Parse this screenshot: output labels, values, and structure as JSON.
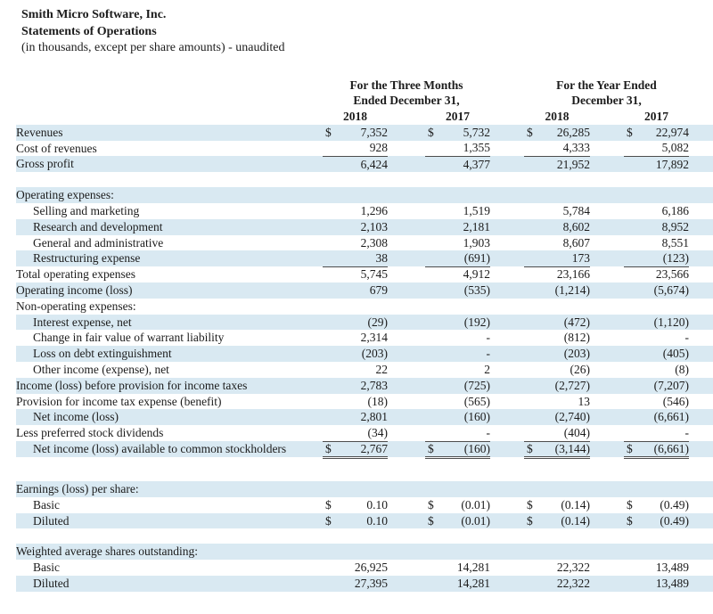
{
  "header": {
    "company": "Smith Micro Software, Inc.",
    "statement_title": "Statements of Operations",
    "subtitle": "(in thousands, except per share amounts) - unaudited"
  },
  "colors": {
    "row_shade": "#d9e9f2",
    "rule": "#4d4d4d",
    "text": "#1c1c1c"
  },
  "table": {
    "currency_symbol": "$",
    "column_groups": [
      {
        "line1": "For the Three Months",
        "line2": "Ended December 31,",
        "years": [
          "2018",
          "2017"
        ]
      },
      {
        "line1": "For the Year Ended",
        "line2": "December 31,",
        "years": [
          "2018",
          "2017"
        ]
      }
    ],
    "rows": [
      {
        "label": "Revenues",
        "indent": 0,
        "shaded": true,
        "dollar": true,
        "values": [
          "7,352",
          "5,732",
          "26,285",
          "22,974"
        ]
      },
      {
        "label": "Cost of revenues",
        "indent": 0,
        "shaded": false,
        "values": [
          "928",
          "1,355",
          "4,333",
          "5,082"
        ],
        "underline": "single"
      },
      {
        "label": "Gross profit",
        "indent": 0,
        "shaded": true,
        "values": [
          "6,424",
          "4,377",
          "21,952",
          "17,892"
        ]
      },
      {
        "spacer": true
      },
      {
        "label": "Operating expenses:",
        "indent": 0,
        "shaded": true,
        "values": []
      },
      {
        "label": "Selling and marketing",
        "indent": 1,
        "shaded": false,
        "values": [
          "1,296",
          "1,519",
          "5,784",
          "6,186"
        ]
      },
      {
        "label": "Research and development",
        "indent": 1,
        "shaded": true,
        "values": [
          "2,103",
          "2,181",
          "8,602",
          "8,952"
        ]
      },
      {
        "label": "General and administrative",
        "indent": 1,
        "shaded": false,
        "values": [
          "2,308",
          "1,903",
          "8,607",
          "8,551"
        ]
      },
      {
        "label": "Restructuring expense",
        "indent": 1,
        "shaded": true,
        "values": [
          "38",
          "(691)",
          "173",
          "(123)"
        ],
        "underline": "single"
      },
      {
        "label": "Total operating expenses",
        "indent": 0,
        "shaded": false,
        "values": [
          "5,745",
          "4,912",
          "23,166",
          "23,566"
        ]
      },
      {
        "label": "Operating income (loss)",
        "indent": 0,
        "shaded": true,
        "values": [
          "679",
          "(535)",
          "(1,214)",
          "(5,674)"
        ]
      },
      {
        "label": "Non-operating expenses:",
        "indent": 0,
        "shaded": false,
        "values": []
      },
      {
        "label": "Interest expense, net",
        "indent": 1,
        "shaded": true,
        "values": [
          "(29)",
          "(192)",
          "(472)",
          "(1,120)"
        ]
      },
      {
        "label": "Change in fair value of warrant liability",
        "indent": 1,
        "shaded": false,
        "values": [
          "2,314",
          "-",
          "(812)",
          "-"
        ]
      },
      {
        "label": "Loss on debt extinguishment",
        "indent": 1,
        "shaded": true,
        "values": [
          "(203)",
          "-",
          "(203)",
          "(405)"
        ]
      },
      {
        "label": "Other income (expense), net",
        "indent": 1,
        "shaded": false,
        "values": [
          "22",
          "2",
          "(26)",
          "(8)"
        ]
      },
      {
        "label": "Income (loss) before provision for income taxes",
        "indent": 0,
        "shaded": true,
        "values": [
          "2,783",
          "(725)",
          "(2,727)",
          "(7,207)"
        ]
      },
      {
        "label": "Provision for income tax expense (benefit)",
        "indent": 0,
        "shaded": false,
        "values": [
          "(18)",
          "(565)",
          "13",
          "(546)"
        ]
      },
      {
        "label": "Net income (loss)",
        "indent": 1,
        "shaded": true,
        "values": [
          "2,801",
          "(160)",
          "(2,740)",
          "(6,661)"
        ]
      },
      {
        "label": "Less preferred stock dividends",
        "indent": 0,
        "shaded": false,
        "values": [
          "(34)",
          "-",
          "(404)",
          "-"
        ],
        "underline": "single"
      },
      {
        "label": "Net income (loss) available to common stockholders",
        "indent": 1,
        "shaded": true,
        "dollar": true,
        "values": [
          "2,767",
          "(160)",
          "(3,144)",
          "(6,661)"
        ],
        "underline": "double"
      },
      {
        "spacer": true,
        "tall": true
      },
      {
        "label": "Earnings (loss) per share:",
        "indent": 0,
        "shaded": true,
        "values": []
      },
      {
        "label": "Basic",
        "indent": 1,
        "shaded": false,
        "dollar": true,
        "values": [
          "0.10",
          "(0.01)",
          "(0.14)",
          "(0.49)"
        ]
      },
      {
        "label": "Diluted",
        "indent": 1,
        "shaded": true,
        "dollar": true,
        "values": [
          "0.10",
          "(0.01)",
          "(0.14)",
          "(0.49)"
        ]
      },
      {
        "spacer": true
      },
      {
        "label": "Weighted average shares outstanding:",
        "indent": 0,
        "shaded": true,
        "values": []
      },
      {
        "label": "Basic",
        "indent": 1,
        "shaded": false,
        "values": [
          "26,925",
          "14,281",
          "22,322",
          "13,489"
        ]
      },
      {
        "label": "Diluted",
        "indent": 1,
        "shaded": true,
        "values": [
          "27,395",
          "14,281",
          "22,322",
          "13,489"
        ]
      }
    ]
  }
}
